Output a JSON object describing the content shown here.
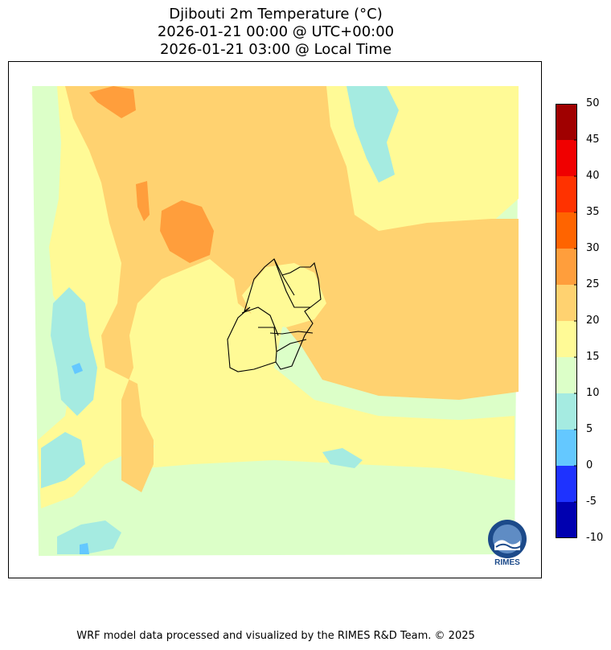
{
  "title": {
    "line1": "Djibouti 2m Temperature (°C)",
    "line2": "2026-01-21 00:00 @ UTC+00:00",
    "line3": "2026-01-21 03:00 @ Local Time"
  },
  "colorbar": {
    "levels": [
      -10,
      -5,
      0,
      5,
      10,
      15,
      20,
      25,
      30,
      35,
      40,
      45,
      50
    ],
    "tick_labels": [
      "-10",
      "-5",
      "0",
      "5",
      "10",
      "15",
      "20",
      "25",
      "30",
      "35",
      "40",
      "45",
      "50"
    ],
    "colors": [
      "#0000b0",
      "#1e32ff",
      "#64c8ff",
      "#a5ebe1",
      "#dcffc8",
      "#fffa96",
      "#ffd270",
      "#ff9e3c",
      "#ff6400",
      "#ff3200",
      "#f00000",
      "#a00000"
    ]
  },
  "logo": {
    "text": "RIMES",
    "icon": "rimes-globe-logo"
  },
  "footer": "WRF model data processed and visualized by the RIMES R&D Team. © 2025"
}
